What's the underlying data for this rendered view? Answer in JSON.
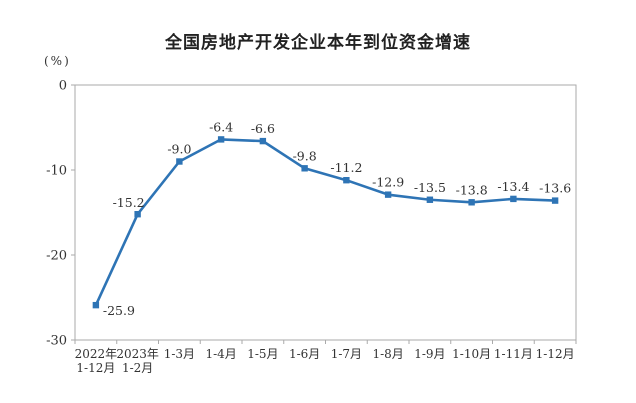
{
  "chart_data": {
    "type": "line",
    "title": "全国房地产开发企业本年到位资金增速",
    "ylabel": "(%)",
    "xlabel": "",
    "categories": [
      "2022年\n1-12月",
      "2023年\n1-2月",
      "1-3月",
      "1-4月",
      "1-5月",
      "1-6月",
      "1-7月",
      "1-8月",
      "1-9月",
      "1-10月",
      "1-11月",
      "1-12月"
    ],
    "values": [
      -25.9,
      -15.2,
      -9.0,
      -6.4,
      -6.6,
      -9.8,
      -11.2,
      -12.9,
      -13.5,
      -13.8,
      -13.4,
      -13.6
    ],
    "yticks": [
      0,
      -10,
      -20,
      -30
    ],
    "ylim": [
      -30,
      0
    ],
    "grid": false,
    "legend": null,
    "marker": "square",
    "colors": {
      "line": "#2E74B5",
      "marker": "#2E74B5",
      "axis": "#AAAAAA",
      "text": "#333333",
      "title": "#222222",
      "background": "#FFFFFF"
    }
  }
}
